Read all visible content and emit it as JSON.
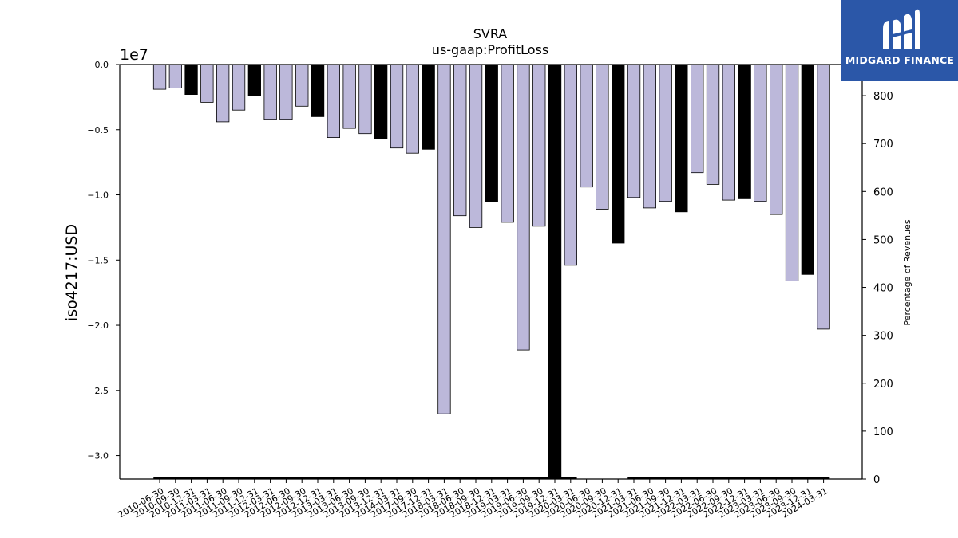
{
  "logo": {
    "text": "MIDGARD FINANCE",
    "background": "#2b57a8"
  },
  "chart_data": {
    "type": "bar",
    "title": "SVRA",
    "subtitle": "us-gaap:ProfitLoss",
    "ylabel": "iso4217:USD",
    "y_offset_label": "1e7",
    "y2label": "Percentage of Revenues",
    "ylim": [
      -31800000,
      0
    ],
    "y2lim": [
      0,
      865
    ],
    "yticks": [
      {
        "value": 0,
        "label": "0.0"
      },
      {
        "value": -5000000,
        "label": "−0.5"
      },
      {
        "value": -10000000,
        "label": "−1.0"
      },
      {
        "value": -15000000,
        "label": "−1.5"
      },
      {
        "value": -20000000,
        "label": "−2.0"
      },
      {
        "value": -25000000,
        "label": "−2.5"
      },
      {
        "value": -30000000,
        "label": "−3.0"
      }
    ],
    "y2ticks": [
      0,
      100,
      200,
      300,
      400,
      500,
      600,
      700,
      800
    ],
    "colors": {
      "quarter": "#bcb8da",
      "fiscal_year_end": "#000000"
    },
    "categories": [
      "2010-06-30",
      "2010-09-30",
      "2010-12-31",
      "2011-03-31",
      "2011-06-30",
      "2011-09-30",
      "2011-12-31",
      "2012-03-31",
      "2012-06-30",
      "2012-09-30",
      "2012-12-31",
      "2013-03-31",
      "2013-06-30",
      "2013-09-30",
      "2013-12-31",
      "2014-03-31",
      "2017-09-30",
      "2017-12-31",
      "2018-03-31",
      "2018-06-30",
      "2018-09-30",
      "2018-12-31",
      "2019-03-31",
      "2019-06-30",
      "2019-09-30",
      "2019-12-31",
      "2020-03-31",
      "2020-06-30",
      "2020-09-30",
      "2020-12-31",
      "2021-03-31",
      "2021-06-30",
      "2021-09-30",
      "2021-12-31",
      "2022-03-31",
      "2022-06-30",
      "2022-09-30",
      "2022-12-31",
      "2023-03-31",
      "2023-06-30",
      "2023-09-30",
      "2023-12-31",
      "2024-03-31"
    ],
    "values": [
      -1900000,
      -1800000,
      -2300000,
      -2900000,
      -4400000,
      -3500000,
      -2400000,
      -4200000,
      -4200000,
      -3200000,
      -4000000,
      -5600000,
      -4900000,
      -5300000,
      -5700000,
      -6400000,
      -6800000,
      -6500000,
      -26800000,
      -11600000,
      -12500000,
      -10500000,
      -12100000,
      -21900000,
      -12400000,
      -32000000,
      -15400000,
      -9400000,
      -11100000,
      -13700000,
      -10200000,
      -11000000,
      -10500000,
      -11300000,
      -8300000,
      -9200000,
      -10400000,
      -10300000,
      -10500000,
      -11500000,
      -16600000,
      -16100000,
      -20300000
    ],
    "fiscal_year_end": [
      false,
      false,
      true,
      false,
      false,
      false,
      true,
      false,
      false,
      false,
      true,
      false,
      false,
      false,
      true,
      false,
      false,
      true,
      false,
      false,
      false,
      true,
      false,
      false,
      false,
      true,
      false,
      false,
      false,
      true,
      false,
      false,
      false,
      true,
      false,
      false,
      false,
      true,
      false,
      false,
      false,
      true,
      false
    ],
    "percentage_series_visible": [
      true,
      true,
      true,
      true,
      true,
      true,
      true,
      true,
      true,
      true,
      true,
      true,
      true,
      true,
      true,
      true,
      true,
      true,
      true,
      true,
      true,
      true,
      true,
      true,
      true,
      true,
      true,
      false,
      false,
      false,
      true,
      true,
      true,
      true,
      true,
      true,
      true,
      true,
      true,
      true,
      true,
      true,
      true
    ]
  }
}
